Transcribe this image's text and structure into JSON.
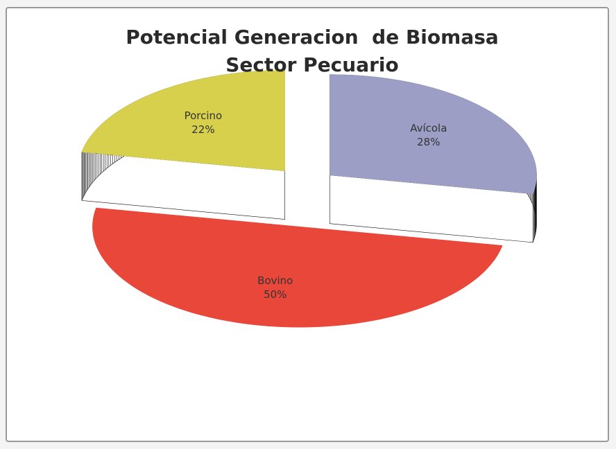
{
  "chart_data": {
    "type": "pie",
    "title": "Potencial Generacion  de Biomasa Sector Pecuario",
    "categories": [
      "Avícola",
      "Bovino",
      "Porcino"
    ],
    "values": [
      28,
      50,
      22
    ],
    "value_labels": [
      "28%",
      "50%",
      "22%"
    ],
    "colors": [
      "#9c9ec6",
      "#e9473a",
      "#d6d04c"
    ]
  }
}
